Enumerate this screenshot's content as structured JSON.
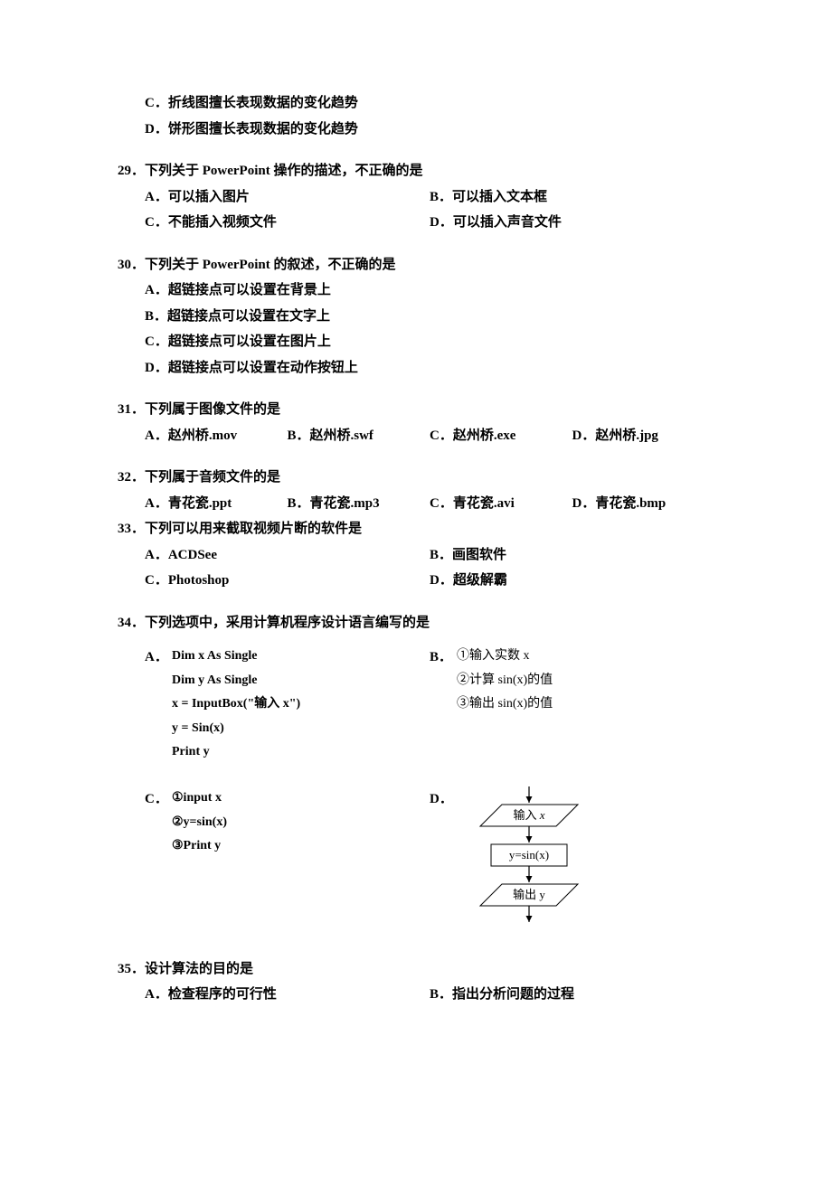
{
  "q28_tail": {
    "C": "C．折线图擅长表现数据的变化趋势",
    "D": "D．饼形图擅长表现数据的变化趋势"
  },
  "q29": {
    "stem": "29．下列关于 PowerPoint 操作的描述，不正确的是",
    "A": "A．可以插入图片",
    "B": "B．可以插入文本框",
    "C": "C．不能插入视频文件",
    "D": "D．可以插入声音文件"
  },
  "q30": {
    "stem": "30．下列关于 PowerPoint 的叙述，不正确的是",
    "A": "A．超链接点可以设置在背景上",
    "B": "B．超链接点可以设置在文字上",
    "C": "C．超链接点可以设置在图片上",
    "D": "D．超链接点可以设置在动作按钮上"
  },
  "q31": {
    "stem": "31．下列属于图像文件的是",
    "A": "A．赵州桥.mov",
    "B": "B．赵州桥.swf",
    "C": "C．赵州桥.exe",
    "D": "D．赵州桥.jpg"
  },
  "q32": {
    "stem": "32．下列属于音频文件的是",
    "A": "A．青花瓷.ppt",
    "B": "B．青花瓷.mp3",
    "C": "C．青花瓷.avi",
    "D": "D．青花瓷.bmp"
  },
  "q33": {
    "stem": "33．下列可以用来截取视频片断的软件是",
    "A": "A．ACDSee",
    "B": "B．画图软件",
    "C": "C．Photoshop",
    "D": "D．超级解霸"
  },
  "q34": {
    "stem": "34．下列选项中，采用计算机程序设计语言编写的是",
    "A_lines": [
      "Dim x As Single",
      "Dim y As Single",
      "x = InputBox(\"输入 x\")",
      "y = Sin(x)",
      "Print y"
    ],
    "B_lines": [
      "①输入实数 x",
      "②计算 sin(x)的值",
      "③输出 sin(x)的值"
    ],
    "C_lines": [
      "①input x",
      "②y=sin(x)",
      "③Print y"
    ],
    "D_flowchart": {
      "node1": "输入 x",
      "node2": "y=sin(x)",
      "node3": "输出 y",
      "node1_italic_part": "x",
      "stroke": "#000000",
      "fill": "#ffffff",
      "font_size": 13
    }
  },
  "q35": {
    "stem": "35．设计算法的目的是",
    "A": "A．检查程序的可行性",
    "B": "B．指出分析问题的过程"
  }
}
